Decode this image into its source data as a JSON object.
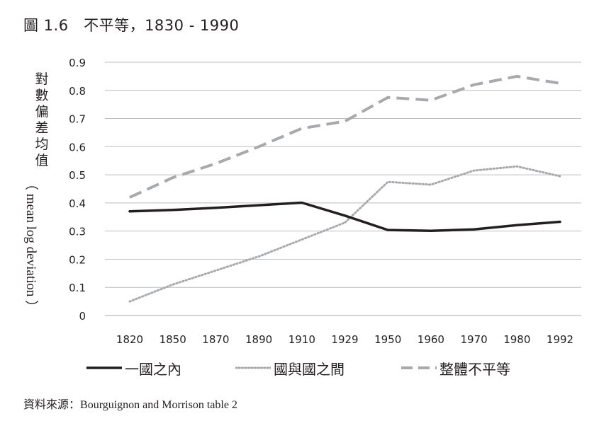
{
  "chart_data": {
    "type": "line",
    "title": "圖 1.6　不平等，1830 - 1990",
    "ylabel_cjk": [
      "對",
      "數",
      "偏",
      "差",
      "均",
      "值"
    ],
    "ylabel_en": "（ mean log deviation ）",
    "categories": [
      "1820",
      "1850",
      "1870",
      "1890",
      "1910",
      "1929",
      "1950",
      "1960",
      "1970",
      "1980",
      "1992"
    ],
    "y_ticks": [
      "0",
      "0.1",
      "0.2",
      "0.3",
      "0.4",
      "0.5",
      "0.6",
      "0.7",
      "0.8",
      "0.9"
    ],
    "ylim": [
      0,
      0.9
    ],
    "grid": true,
    "series": [
      {
        "name": "一國之內",
        "style": "solid",
        "color": "#231f20",
        "values": [
          0.37,
          0.375,
          0.383,
          0.392,
          0.401,
          0.355,
          0.304,
          0.301,
          0.306,
          0.321,
          0.333
        ]
      },
      {
        "name": "國與國之間",
        "style": "dotted",
        "color": "#a7a9ac",
        "values": [
          0.05,
          0.11,
          0.16,
          0.21,
          0.27,
          0.33,
          0.475,
          0.465,
          0.515,
          0.53,
          0.495
        ]
      },
      {
        "name": "整體不平等",
        "style": "dashed",
        "color": "#a7a9ac",
        "values": [
          0.42,
          0.49,
          0.54,
          0.6,
          0.665,
          0.69,
          0.775,
          0.765,
          0.82,
          0.85,
          0.825
        ]
      }
    ],
    "legend_position": "bottom"
  },
  "source": {
    "label": "資料來源：",
    "text": "Bourguignon and Morrison table 2"
  }
}
